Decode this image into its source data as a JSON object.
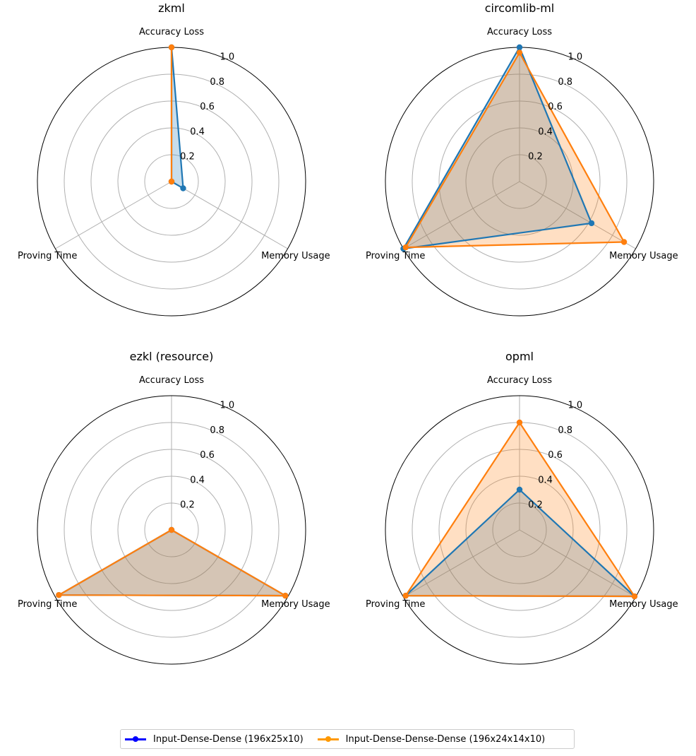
{
  "chart_data": [
    {
      "type": "radar",
      "title": "zkml",
      "axes": [
        "Accuracy Loss",
        "Memory Usage",
        "Proving Time"
      ],
      "rlim": [
        0,
        1.0
      ],
      "rticks": [
        "0.2",
        "0.4",
        "0.6",
        "0.8",
        "1.0"
      ],
      "grid": true,
      "series": [
        {
          "name": "Input-Dense-Dense (196x25x10)",
          "values": [
            1.0,
            0.1,
            0.0
          ]
        },
        {
          "name": "Input-Dense-Dense-Dense (196x24x14x10)",
          "values": [
            1.0,
            0.0,
            0.0
          ]
        }
      ]
    },
    {
      "type": "radar",
      "title": "circomlib-ml",
      "axes": [
        "Accuracy Loss",
        "Memory Usage",
        "Proving Time"
      ],
      "rlim": [
        0,
        1.0
      ],
      "rticks": [
        "0.2",
        "0.4",
        "0.6",
        "0.8",
        "1.0"
      ],
      "grid": true,
      "series": [
        {
          "name": "Input-Dense-Dense (196x25x10)",
          "values": [
            1.0,
            0.62,
            1.0
          ]
        },
        {
          "name": "Input-Dense-Dense-Dense (196x24x14x10)",
          "values": [
            0.96,
            0.9,
            0.98
          ]
        }
      ]
    },
    {
      "type": "radar",
      "title": "ezkl (resource)",
      "axes": [
        "Accuracy Loss",
        "Memory Usage",
        "Proving Time"
      ],
      "rlim": [
        0,
        1.0
      ],
      "rticks": [
        "0.2",
        "0.4",
        "0.6",
        "0.8",
        "1.0"
      ],
      "grid": true,
      "series": [
        {
          "name": "Input-Dense-Dense (196x25x10)",
          "values": [
            0.0,
            0.98,
            0.97
          ]
        },
        {
          "name": "Input-Dense-Dense-Dense (196x24x14x10)",
          "values": [
            0.0,
            0.98,
            0.97
          ]
        }
      ]
    },
    {
      "type": "radar",
      "title": "opml",
      "axes": [
        "Accuracy Loss",
        "Memory Usage",
        "Proving Time"
      ],
      "rlim": [
        0,
        1.0
      ],
      "rticks": [
        "0.2",
        "0.4",
        "0.6",
        "0.8",
        "1.0"
      ],
      "grid": true,
      "series": [
        {
          "name": "Input-Dense-Dense (196x25x10)",
          "values": [
            0.3,
            0.99,
            0.98
          ]
        },
        {
          "name": "Input-Dense-Dense-Dense (196x24x14x10)",
          "values": [
            0.8,
            0.99,
            0.98
          ]
        }
      ]
    }
  ],
  "legend": {
    "placement": "bottom-center",
    "entries": [
      {
        "label": "Input-Dense-Dense (196x25x10)",
        "color": "#0000ff"
      },
      {
        "label": "Input-Dense-Dense-Dense (196x24x14x10)",
        "color": "#ff9900"
      }
    ]
  },
  "colors": {
    "series_line": [
      "#1f77b4",
      "#ff7f0e"
    ],
    "series_fill": [
      "#1f77b4",
      "#ff7f0e"
    ],
    "grid": "#b0b0b0"
  }
}
